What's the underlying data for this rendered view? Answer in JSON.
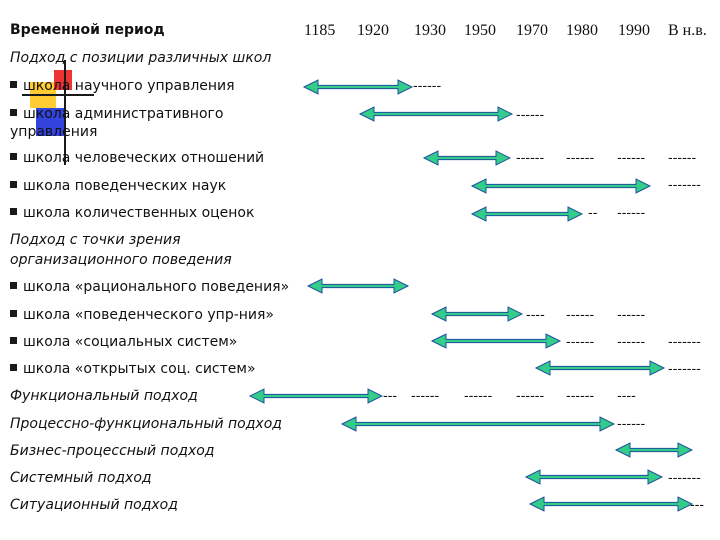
{
  "header": {
    "period_label": "Временной период",
    "years": [
      "1185",
      "1920",
      "1930",
      "1950",
      "1970",
      "1980",
      "1990",
      "В н.в."
    ]
  },
  "sections": {
    "schools": "Подход с позиции различных школ",
    "org_behavior_line1": "Подход с точки зрения",
    "org_behavior_line2": "организационного поведения"
  },
  "rows": {
    "sci": "школа научного управления",
    "admin_line1": "школа административного",
    "admin_line2": "управления",
    "human": "школа человеческих отношений",
    "behav": "школа поведенческих наук",
    "quant": "школа количественных оценок",
    "rational": "школа «рационального поведения»",
    "behav_mgmt": "школа «поведенческого упр-ния»",
    "social": "школа «социальных систем»",
    "open": "школа «открытых соц. систем»",
    "functional": "Функциональный подход",
    "process_functional": "Процессно-функциональный подход",
    "business_process": "Бизнес-процессный подход",
    "system": "Системный подход",
    "situational": "Ситуационный подход"
  },
  "continuations": {
    "sci": "------",
    "admin": "------",
    "human": [
      "------",
      "------",
      "------",
      "------"
    ],
    "behav": "-------",
    "quant": [
      "--",
      "------"
    ],
    "behav_mgmt": [
      "----",
      "------",
      "------"
    ],
    "social": [
      "------",
      "------",
      "-------"
    ],
    "open": "-------",
    "functional": [
      "---",
      "------",
      "------",
      "------",
      "------",
      "----"
    ],
    "process_functional": "------",
    "system": "-------",
    "situational": "---"
  },
  "colors": {
    "arrow_fill": "#33cc88",
    "arrow_stroke": "#1f4f9e",
    "deco_yellow": "#ffcc33",
    "deco_red": "#ee3333",
    "deco_blue": "#3344dd"
  }
}
